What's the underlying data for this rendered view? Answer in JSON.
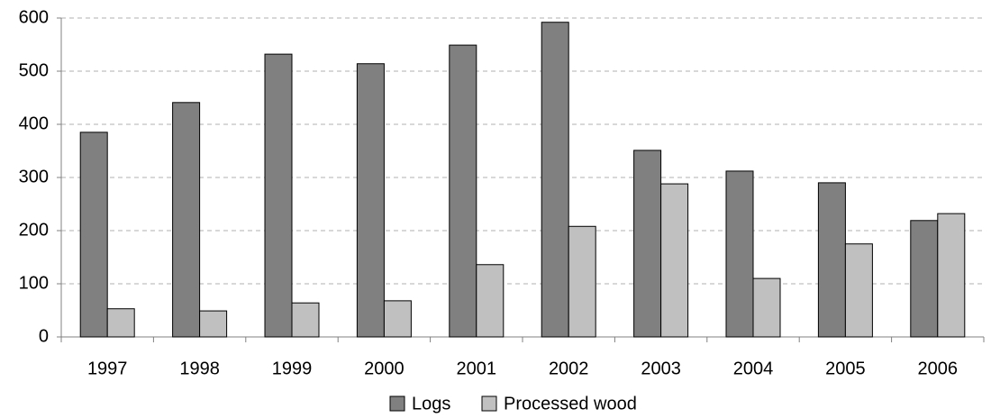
{
  "chart_data": {
    "type": "bar",
    "categories": [
      "1997",
      "1998",
      "1999",
      "2000",
      "2001",
      "2002",
      "2003",
      "2004",
      "2005",
      "2006"
    ],
    "series": [
      {
        "name": "Logs",
        "color": "#808080",
        "values": [
          385,
          441,
          532,
          514,
          549,
          592,
          351,
          312,
          290,
          219
        ]
      },
      {
        "name": "Processed wood",
        "color": "#c0c0c0",
        "values": [
          53,
          49,
          64,
          68,
          136,
          208,
          288,
          110,
          175,
          232
        ]
      }
    ],
    "ylim": [
      0,
      600
    ],
    "yticks": [
      0,
      100,
      200,
      300,
      400,
      500,
      600
    ],
    "grid": true,
    "legend": "bottom"
  }
}
